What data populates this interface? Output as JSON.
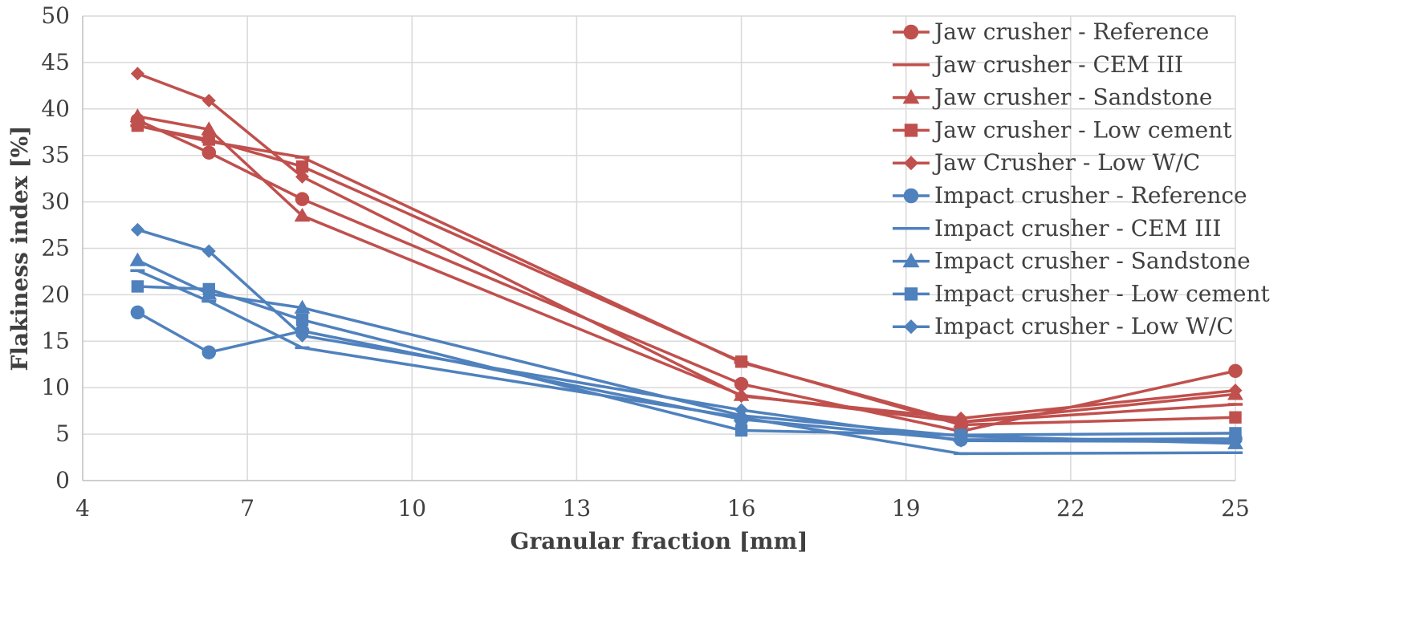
{
  "chart_data": {
    "type": "line",
    "xlabel": "Granular fraction [mm]",
    "ylabel": "Flakiness index  [%]",
    "xlim": [
      4,
      25
    ],
    "ylim": [
      0,
      50
    ],
    "xticks": [
      4,
      7,
      10,
      13,
      16,
      19,
      22,
      25
    ],
    "yticks": [
      0,
      5,
      10,
      15,
      20,
      25,
      30,
      35,
      40,
      45,
      50
    ],
    "grid": true,
    "legend_position": "top-right",
    "x": [
      5,
      6.3,
      8,
      16,
      20,
      25
    ],
    "colors": {
      "jaw": "#c0504d",
      "impact": "#4f81bd"
    },
    "series": [
      {
        "name": "Jaw crusher - Reference",
        "group": "jaw",
        "marker": "circle",
        "values": [
          38.8,
          35.3,
          30.3,
          10.4,
          5.3,
          11.8
        ]
      },
      {
        "name": "Jaw crusher - CEM III",
        "group": "jaw",
        "marker": "none",
        "values": [
          38.2,
          36.5,
          34.8,
          12.7,
          6.3,
          8.2
        ]
      },
      {
        "name": "Jaw crusher - Sandstone",
        "group": "jaw",
        "marker": "triangle",
        "values": [
          39.2,
          37.8,
          28.5,
          9.2,
          6.3,
          9.3
        ]
      },
      {
        "name": "Jaw crusher - Low cement",
        "group": "jaw",
        "marker": "square",
        "values": [
          38.2,
          36.7,
          33.8,
          12.8,
          6.0,
          6.8
        ]
      },
      {
        "name": "Jaw Crusher - Low W/C",
        "group": "jaw",
        "marker": "diamond",
        "values": [
          43.8,
          40.9,
          32.7,
          9.1,
          6.7,
          9.7
        ]
      },
      {
        "name": "Impact crusher - Reference",
        "group": "impact",
        "marker": "circle",
        "values": [
          18.1,
          13.8,
          16.1,
          6.6,
          4.4,
          4.5
        ]
      },
      {
        "name": "Impact crusher - CEM III",
        "group": "impact",
        "marker": "none",
        "values": [
          22.6,
          19.3,
          14.3,
          6.8,
          2.9,
          3.0
        ]
      },
      {
        "name": "Impact crusher - Sandstone",
        "group": "impact",
        "marker": "triangle",
        "values": [
          23.7,
          20.1,
          18.6,
          7.0,
          4.8,
          4.0
        ]
      },
      {
        "name": "Impact crusher - Low cement",
        "group": "impact",
        "marker": "square",
        "values": [
          20.9,
          20.6,
          17.3,
          5.4,
          4.9,
          5.1
        ]
      },
      {
        "name": "Impact crusher - Low W/C",
        "group": "impact",
        "marker": "diamond",
        "values": [
          27.0,
          24.7,
          15.6,
          7.6,
          4.3,
          4.2
        ]
      }
    ]
  }
}
